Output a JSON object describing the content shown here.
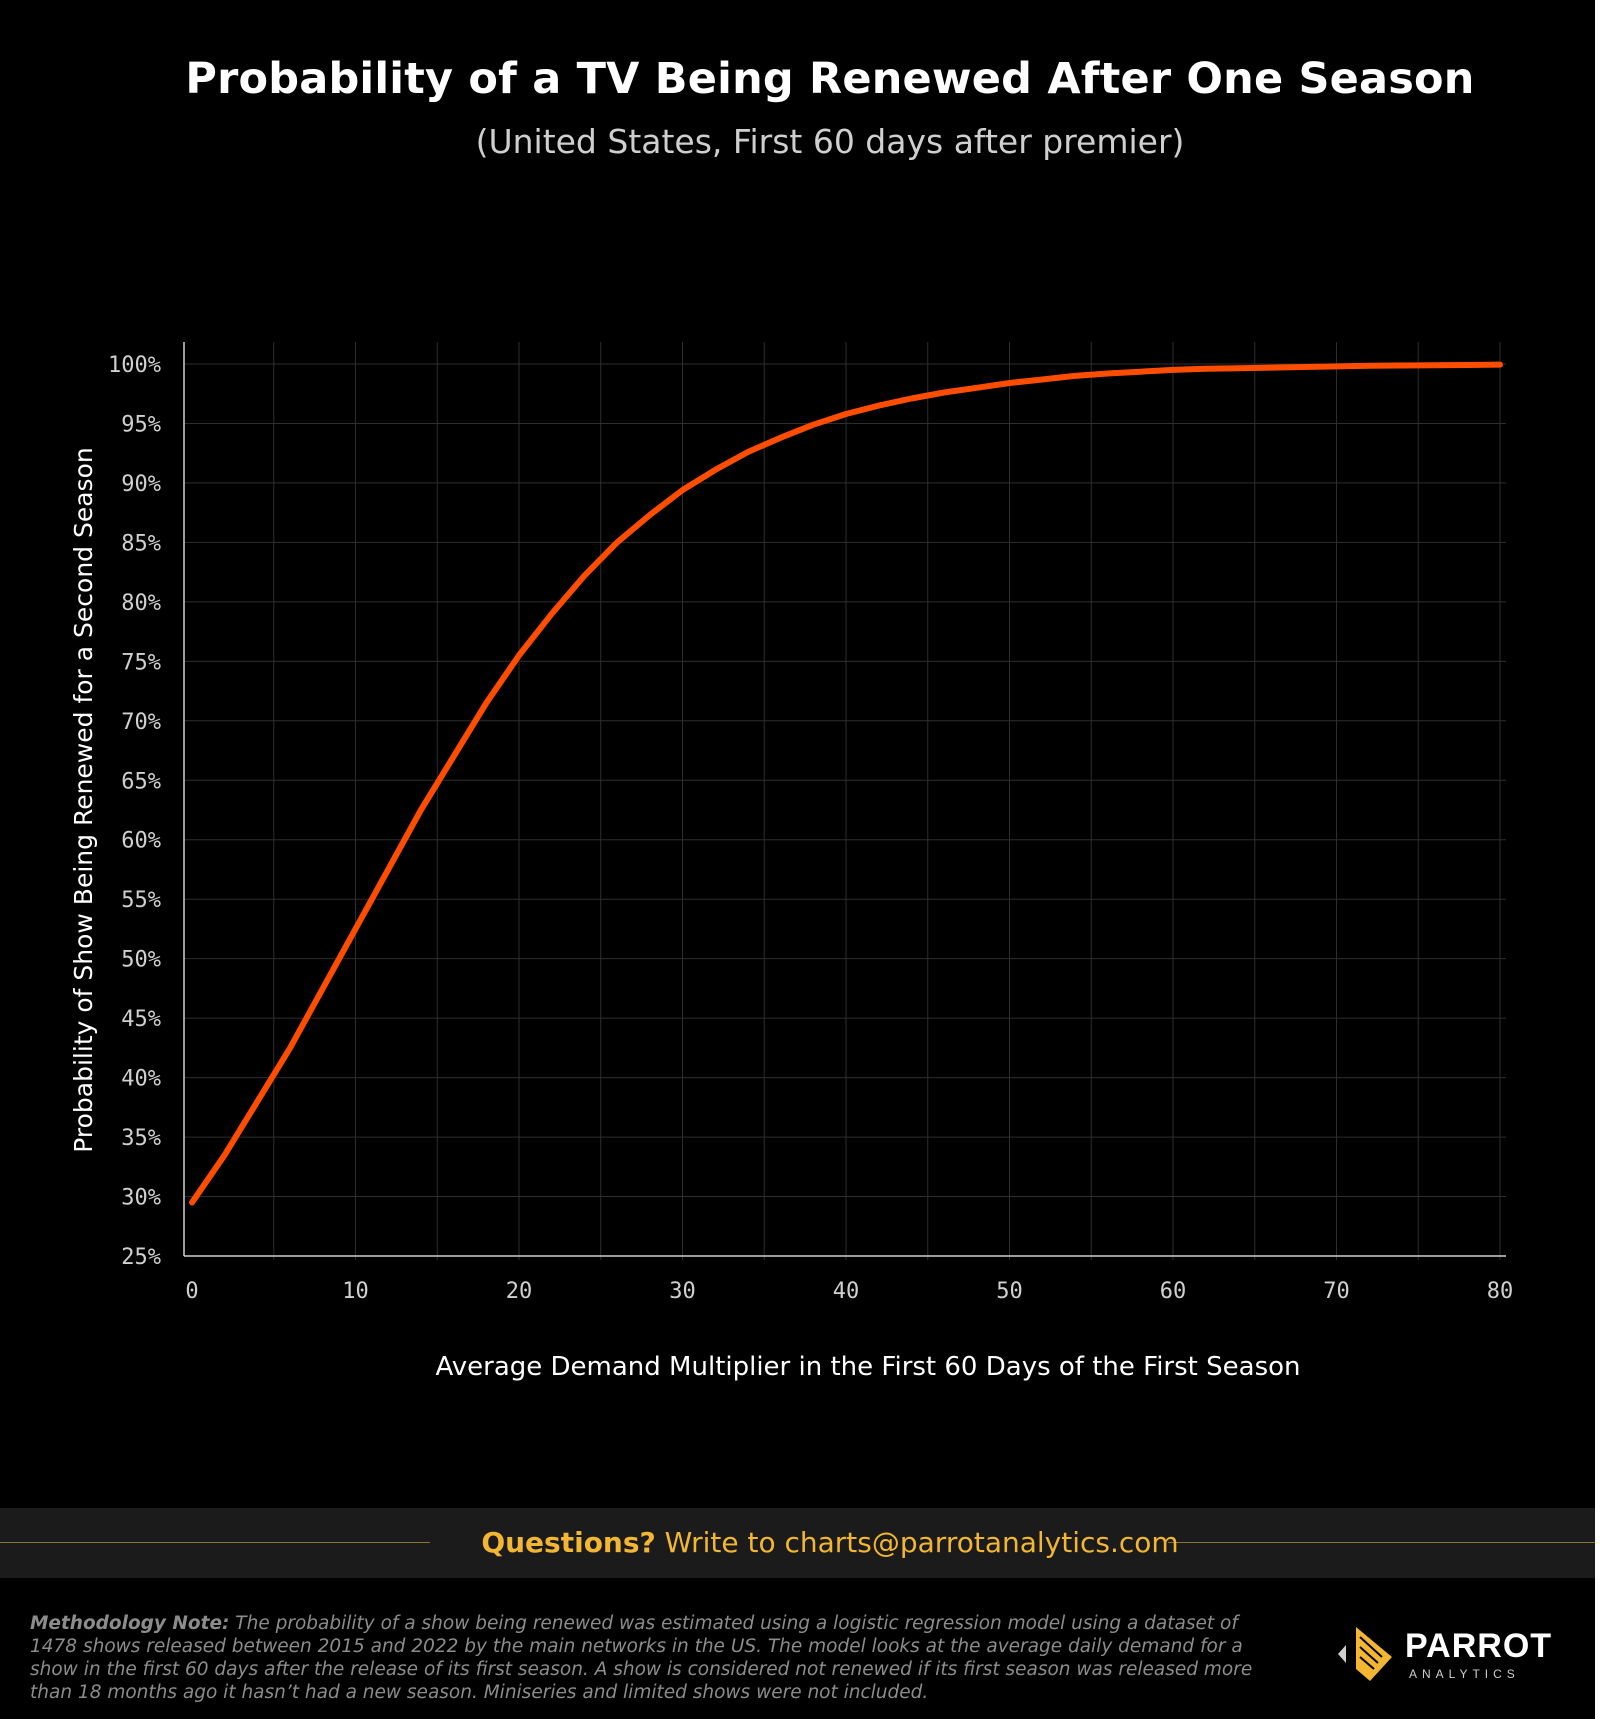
{
  "header": {
    "title": "Probability of a TV Being Renewed After One Season",
    "subtitle": "(United States, First 60 days after premier)"
  },
  "chart_data": {
    "type": "line",
    "xlabel": "Average Demand Multiplier in the First 60 Days of the First Season",
    "ylabel": "Probability of Show Being Renewed for a Second Season",
    "xlim": [
      0,
      80
    ],
    "ylim": [
      25,
      100
    ],
    "x_ticks": [
      "0",
      "10",
      "20",
      "30",
      "40",
      "50",
      "60",
      "70",
      "80"
    ],
    "y_ticks": [
      "25%",
      "30%",
      "35%",
      "40%",
      "45%",
      "50%",
      "55%",
      "60%",
      "65%",
      "70%",
      "75%",
      "80%",
      "85%",
      "90%",
      "95%",
      "100%"
    ],
    "grid": true,
    "series": [
      {
        "x": [
          0,
          2,
          4,
          6,
          8,
          10,
          12,
          14,
          16,
          18,
          20,
          22,
          24,
          26,
          28,
          30,
          32,
          34,
          36,
          38,
          40,
          42,
          44,
          46,
          48,
          50,
          52,
          54,
          56,
          58,
          60,
          62,
          64,
          66,
          68,
          70,
          72,
          74,
          76,
          78,
          80
        ],
        "y": [
          29.5,
          33.5,
          38,
          42.5,
          47.5,
          52.5,
          57.5,
          62.5,
          67,
          71.5,
          75.5,
          79,
          82.2,
          85,
          87.3,
          89.4,
          91.1,
          92.6,
          93.8,
          94.9,
          95.8,
          96.5,
          97.1,
          97.6,
          98.0,
          98.4,
          98.7,
          99.0,
          99.2,
          99.35,
          99.5,
          99.6,
          99.65,
          99.7,
          99.75,
          99.8,
          99.85,
          99.87,
          99.9,
          99.92,
          99.95
        ]
      }
    ],
    "colors": {
      "line": "#ff4d00",
      "grid": "#2e2e2e",
      "text": "#ffffff",
      "tick_text": "#d0d0d0"
    }
  },
  "footer": {
    "questions_lead": "Questions?",
    "questions_text": " Write to charts@parrotanalytics.com",
    "method_lead": "Methodology Note:",
    "method_text": " The probability of a show being renewed was estimated using a logistic regression model using a dataset of 1478 shows released between 2015 and 2022 by the main networks in the US. The model looks at the average daily demand for a show in the first 60 days after the release of its first season. A show is considered not renewed if its first season was released more than 18 months ago it hasn’t had a new season. Miniseries and limited shows were not included."
  },
  "logo": {
    "brand": "PARROT",
    "sub": "ANALYTICS"
  },
  "colors": {
    "background": "#000000",
    "accent": "#f2b632",
    "bar": "#1b1b1b"
  }
}
